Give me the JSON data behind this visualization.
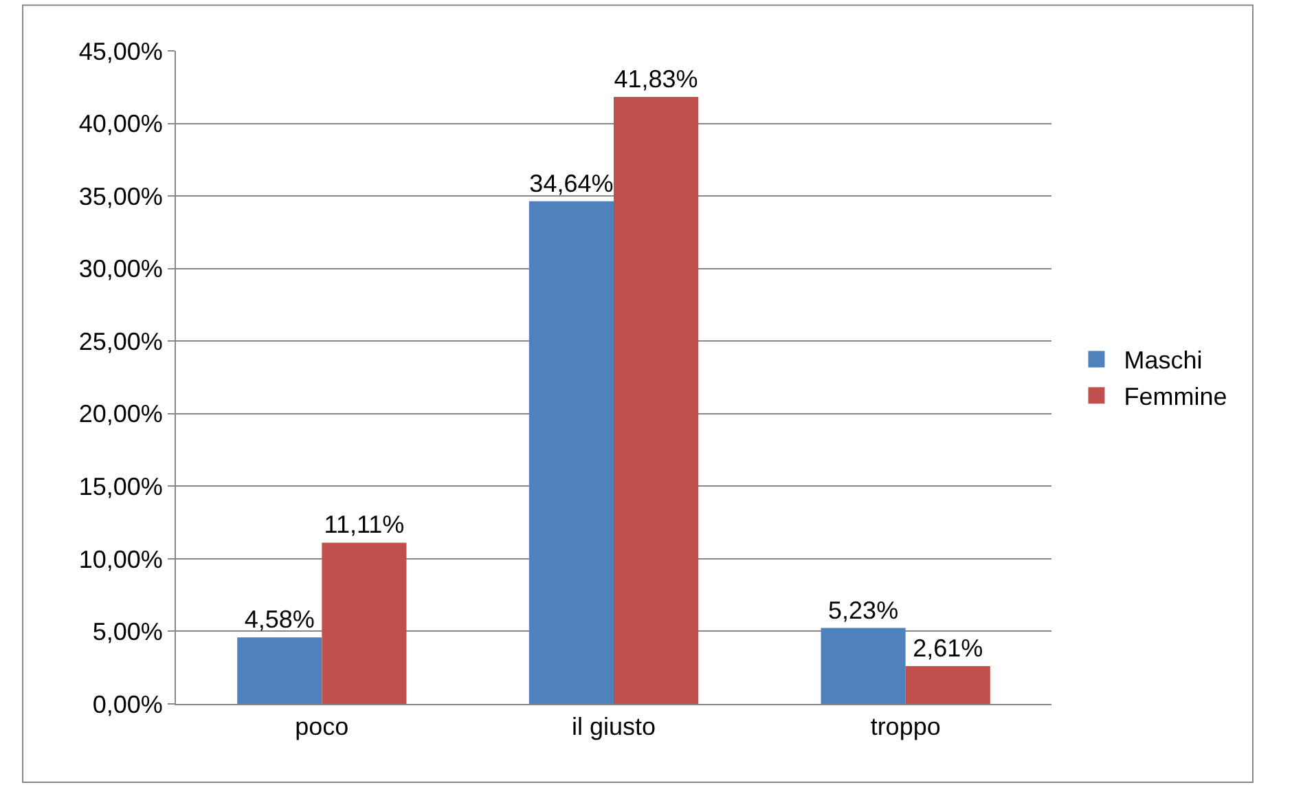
{
  "chart_data": {
    "type": "bar",
    "categories": [
      "poco",
      "il giusto",
      "troppo"
    ],
    "series": [
      {
        "name": "Maschi",
        "color": "#4f81bd",
        "values": [
          4.58,
          34.64,
          5.23
        ],
        "value_labels": [
          "4,58%",
          "34,64%",
          "5,23%"
        ]
      },
      {
        "name": "Femmine",
        "color": "#c0504d",
        "values": [
          11.11,
          41.83,
          2.61
        ],
        "value_labels": [
          "11,11%",
          "41,83%",
          "2,61%"
        ]
      }
    ],
    "ylim": [
      0,
      45
    ],
    "yticks": [
      {
        "value": 0,
        "label": "0,00%"
      },
      {
        "value": 5,
        "label": "5,00%"
      },
      {
        "value": 10,
        "label": "10,00%"
      },
      {
        "value": 15,
        "label": "15,00%"
      },
      {
        "value": 20,
        "label": "20,00%"
      },
      {
        "value": 25,
        "label": "25,00%"
      },
      {
        "value": 30,
        "label": "30,00%"
      },
      {
        "value": 35,
        "label": "35,00%"
      },
      {
        "value": 40,
        "label": "40,00%"
      },
      {
        "value": 45,
        "label": "45,00%"
      }
    ],
    "grid": "y",
    "legend": "right"
  }
}
